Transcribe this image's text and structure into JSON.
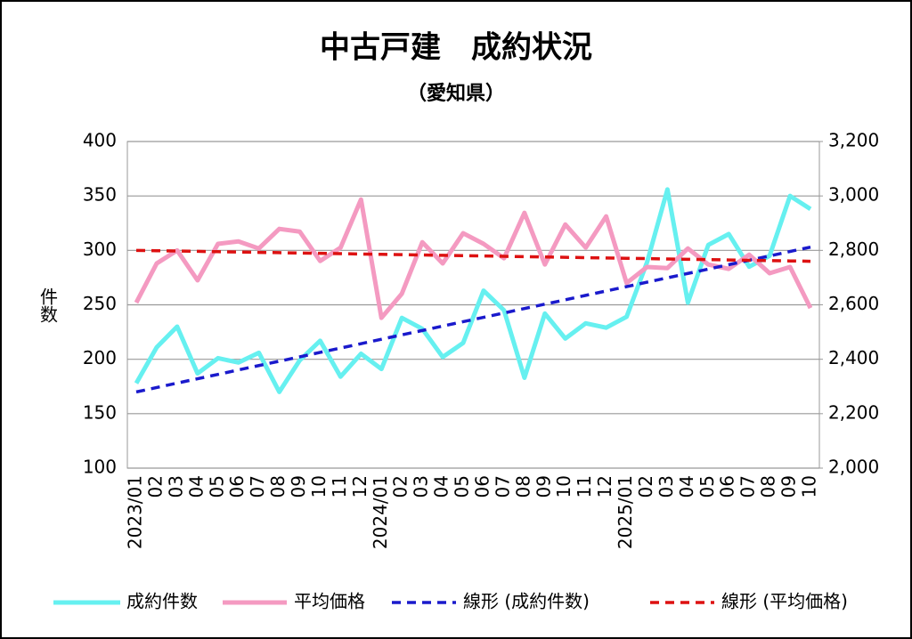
{
  "chart_data": {
    "type": "line",
    "title": "中古戸建　成約状況",
    "subtitle": "（愛知県）",
    "y_label": "件数",
    "categories": [
      "2023/01",
      "02",
      "03",
      "04",
      "05",
      "06",
      "07",
      "08",
      "09",
      "10",
      "11",
      "12",
      "2024/01",
      "02",
      "03",
      "04",
      "05",
      "06",
      "07",
      "08",
      "09",
      "10",
      "11",
      "12",
      "2025/01",
      "02",
      "03",
      "04",
      "05",
      "06",
      "07",
      "08",
      "09",
      "10"
    ],
    "ylim": [
      100,
      400
    ],
    "yticks": [
      100,
      150,
      200,
      250,
      300,
      350,
      400
    ],
    "y2lim": [
      2000,
      3200
    ],
    "y2ticks": [
      {
        "value": 2000,
        "label": "2,000"
      },
      {
        "value": 2200,
        "label": "2,200"
      },
      {
        "value": 2400,
        "label": "2,400"
      },
      {
        "value": 2600,
        "label": "2,600"
      },
      {
        "value": 2800,
        "label": "2,800"
      },
      {
        "value": 3000,
        "label": "3,000"
      },
      {
        "value": 3200,
        "label": "3,200"
      }
    ],
    "grid": true,
    "legend": "bottom",
    "series": [
      {
        "name": "成約件数",
        "color": "#66f0f0",
        "axis": "y",
        "dashed": false,
        "values": [
          178,
          211,
          230,
          187,
          201,
          197,
          206,
          170,
          199,
          217,
          184,
          205,
          191,
          238,
          228,
          202,
          215,
          263,
          245,
          183,
          242,
          219,
          233,
          229,
          239,
          289,
          356,
          252,
          305,
          315,
          285,
          295,
          350,
          338
        ]
      },
      {
        "name": "平均価格",
        "color": "#f49ac1",
        "axis": "y2",
        "dashed": false,
        "values": [
          2608,
          2752,
          2800,
          2690,
          2824,
          2833,
          2807,
          2879,
          2869,
          2761,
          2810,
          2987,
          2552,
          2641,
          2830,
          2752,
          2863,
          2824,
          2771,
          2938,
          2748,
          2895,
          2810,
          2925,
          2680,
          2739,
          2735,
          2807,
          2748,
          2732,
          2784,
          2716,
          2739,
          2588
        ]
      },
      {
        "name": "線形 (成約件数)",
        "color": "#1a1acc",
        "axis": "y",
        "dashed": true,
        "values": [
          170,
          174,
          178.1,
          182.1,
          186.1,
          190.2,
          194.2,
          198.2,
          202.2,
          206.3,
          210.3,
          214.3,
          218.4,
          222.4,
          226.4,
          230.5,
          234.5,
          238.5,
          242.5,
          246.6,
          250.6,
          254.6,
          258.7,
          262.7,
          266.7,
          270.8,
          274.8,
          278.8,
          282.8,
          286.9,
          290.9,
          294.9,
          299,
          303
        ]
      },
      {
        "name": "線形 (平均価格)",
        "color": "#dd1111",
        "axis": "y2",
        "dashed": true,
        "values": [
          2800,
          2798.8,
          2797.6,
          2796.4,
          2795.2,
          2793.9,
          2792.7,
          2791.5,
          2790.3,
          2789.1,
          2787.9,
          2786.7,
          2785.5,
          2784.2,
          2783,
          2781.8,
          2780.6,
          2779.4,
          2778.2,
          2777,
          2775.8,
          2774.5,
          2773.3,
          2772.1,
          2770.9,
          2769.7,
          2768.5,
          2767.3,
          2766.1,
          2764.8,
          2763.6,
          2762.4,
          2761.2,
          2760
        ]
      }
    ]
  }
}
